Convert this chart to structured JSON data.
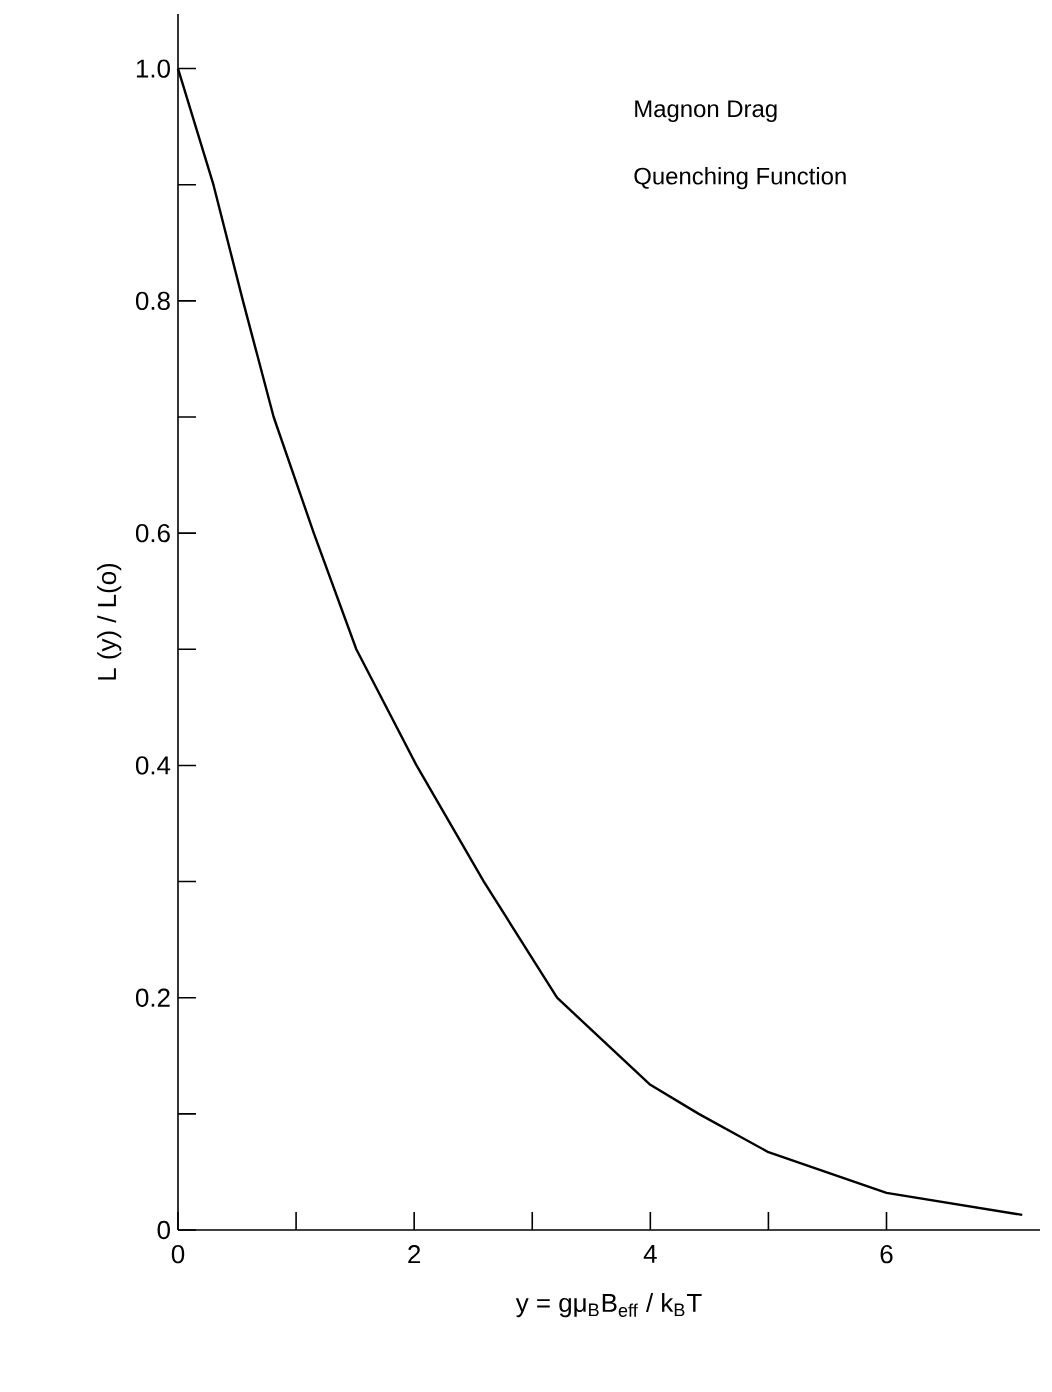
{
  "chart_data": {
    "type": "line",
    "xlabel": "y = gμ$_{B}$B$_{eff}$ / k$_{B}$T",
    "ylabel": "L (y) / L(o)",
    "annotations": [
      "Magnon Drag",
      "Quenching Function"
    ],
    "x": [
      0,
      0.3,
      0.55,
      0.81,
      1.15,
      1.51,
      2.02,
      2.59,
      3.21,
      4.0,
      4.41,
      5.0,
      6.0,
      7.15
    ],
    "values": [
      1.0,
      0.9,
      0.8,
      0.7,
      0.6,
      0.5,
      0.4,
      0.3,
      0.2,
      0.125,
      0.1,
      0.067,
      0.032,
      0.013
    ],
    "color": "#000000",
    "line_style": "solid",
    "marker": "none",
    "xlim": [
      0,
      7.3
    ],
    "ylim": [
      0,
      1.047
    ],
    "xticks": [
      0,
      {
        "value": 1,
        "label": null
      },
      2,
      {
        "value": 3,
        "label": null
      },
      4,
      {
        "value": 5,
        "label": null
      },
      6
    ],
    "yticks": [
      {
        "value": 0,
        "label": "0"
      },
      {
        "value": 0.1,
        "label": null
      },
      0.2,
      {
        "value": 0.3,
        "label": null
      },
      0.4,
      {
        "value": 0.5,
        "label": null
      },
      0.6,
      {
        "value": 0.7,
        "label": null
      },
      0.8,
      {
        "value": 0.9,
        "label": null
      },
      {
        "value": 1.0,
        "label": "1.0"
      }
    ]
  }
}
